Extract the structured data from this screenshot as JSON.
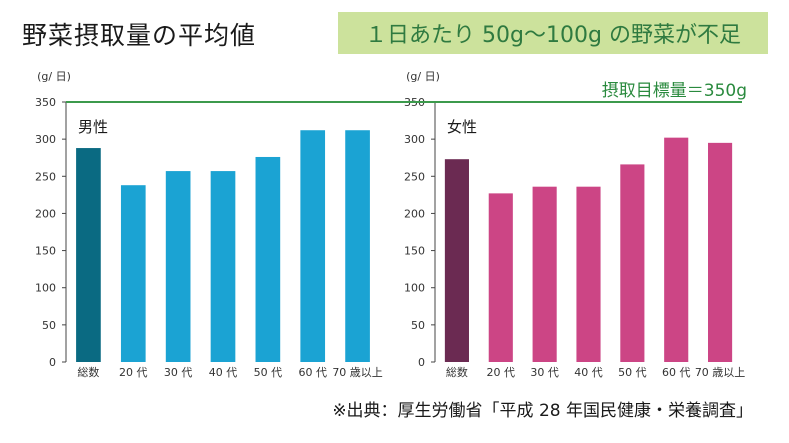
{
  "header": {
    "title": "野菜摂取量の平均値",
    "banner": "１日あたり 50g〜100g の野菜が不足"
  },
  "target_label": "摂取目標量＝350g",
  "footer": "※出典：厚生労働省「平成 28 年国民健康・栄養調査」",
  "colors": {
    "male_total": "#0a6a82",
    "male": "#1ba3d3",
    "female_total": "#6b2a52",
    "female": "#cc4585",
    "target_line": "#3c9a4c",
    "banner_bg": "#cce29c"
  },
  "chart_data": [
    {
      "type": "bar",
      "title": "男性",
      "ylabel": "(g/ 日)",
      "ylim": [
        0,
        350
      ],
      "yticks": [
        0,
        50,
        100,
        150,
        200,
        250,
        300,
        350
      ],
      "categories": [
        "総数",
        "20 代",
        "30 代",
        "40 代",
        "50 代",
        "60 代",
        "70 歳以上"
      ],
      "values": [
        288,
        238,
        257,
        257,
        276,
        312,
        312
      ],
      "reference_line": 350
    },
    {
      "type": "bar",
      "title": "女性",
      "ylabel": "(g/ 日)",
      "ylim": [
        0,
        350
      ],
      "yticks": [
        0,
        50,
        100,
        150,
        200,
        250,
        300,
        350
      ],
      "categories": [
        "総数",
        "20 代",
        "30 代",
        "40 代",
        "50 代",
        "60 代",
        "70 歳以上"
      ],
      "values": [
        273,
        227,
        236,
        236,
        266,
        302,
        295
      ],
      "reference_line": 350
    }
  ]
}
